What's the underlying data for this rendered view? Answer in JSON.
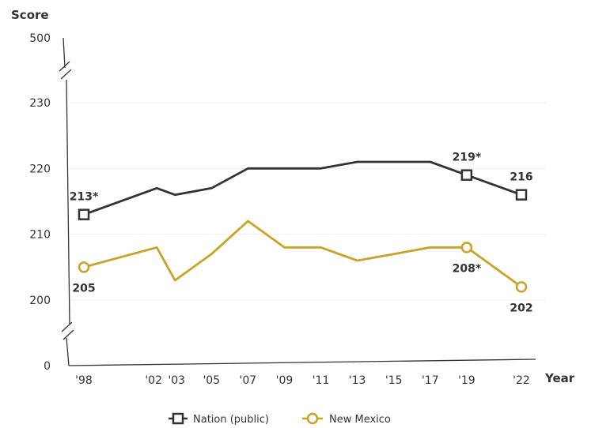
{
  "chart_data": {
    "type": "line",
    "ylabel": "Score",
    "xlabel": "Year",
    "x": [
      "'98",
      "'02",
      "'03",
      "'05",
      "'07",
      "'09",
      "'11",
      "'13",
      "'15",
      "'17",
      "'19",
      "'22"
    ],
    "x_years": [
      1998,
      2002,
      2003,
      2005,
      2007,
      2009,
      2011,
      2013,
      2015,
      2017,
      2019,
      2022
    ],
    "y_ticks": [
      0,
      200,
      210,
      220,
      230,
      500
    ],
    "y_tick_labels": [
      "0",
      "200",
      "210",
      "220",
      "230",
      "500"
    ],
    "axis_break": true,
    "ylim": [
      200,
      230
    ],
    "grid": true,
    "legend_position": "bottom",
    "series": [
      {
        "name": "Nation (public)",
        "color": "#333333",
        "marker": "square",
        "values": [
          213,
          217,
          216,
          217,
          220,
          220,
          220,
          221,
          221,
          221,
          219,
          216
        ]
      },
      {
        "name": "New Mexico",
        "color": "#c9a227",
        "marker": "circle",
        "values": [
          205,
          208,
          203,
          207,
          212,
          208,
          208,
          206,
          207,
          208,
          208,
          202
        ]
      }
    ],
    "annotations": [
      {
        "series": 0,
        "point": 0,
        "text": "213*"
      },
      {
        "series": 0,
        "point": 10,
        "text": "219*"
      },
      {
        "series": 0,
        "point": 11,
        "text": "216"
      },
      {
        "series": 1,
        "point": 0,
        "text": "205"
      },
      {
        "series": 1,
        "point": 10,
        "text": "208*"
      },
      {
        "series": 1,
        "point": 11,
        "text": "202"
      }
    ],
    "marker_points": [
      0,
      10,
      11
    ]
  }
}
